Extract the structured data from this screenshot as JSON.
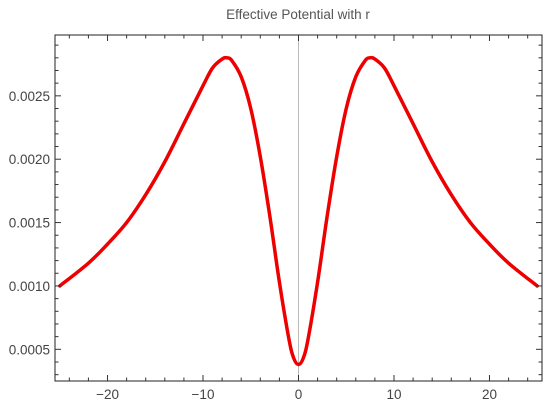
{
  "chart_data": {
    "type": "line",
    "title": "Effective Potential with r",
    "xlabel": "",
    "ylabel": "",
    "xlim": [
      -25.5,
      25.5
    ],
    "ylim": [
      0.00025,
      0.00298
    ],
    "x_ticks": [
      -20,
      -10,
      0,
      10,
      20
    ],
    "x_tick_labels": [
      "−20",
      "−10",
      "0",
      "10",
      "20"
    ],
    "y_ticks": [
      0.0005,
      0.001,
      0.0015,
      0.002,
      0.0025
    ],
    "y_tick_labels": [
      "0.0005",
      "0.0010",
      "0.0015",
      "0.0020",
      "0.0025"
    ],
    "grid": false,
    "zero_line_x": 0,
    "series": [
      {
        "color": "#ee0000",
        "x": [
          -25,
          -22,
          -20,
          -18,
          -16,
          -14,
          -12,
          -10,
          -9,
          -8,
          -7.5,
          -7,
          -6,
          -5,
          -4,
          -3,
          -2,
          -1,
          -0.5,
          0,
          0.5,
          1,
          2,
          3,
          4,
          5,
          6,
          7,
          7.5,
          8,
          9,
          10,
          12,
          14,
          16,
          18,
          20,
          22,
          25
        ],
        "y": [
          0.001,
          0.00118,
          0.00133,
          0.0015,
          0.00172,
          0.00198,
          0.00228,
          0.00258,
          0.00272,
          0.00279,
          0.0028,
          0.00278,
          0.00265,
          0.0024,
          0.00202,
          0.00155,
          0.00103,
          0.00058,
          0.00043,
          0.00038,
          0.00043,
          0.00058,
          0.00103,
          0.00155,
          0.00202,
          0.0024,
          0.00265,
          0.00278,
          0.0028,
          0.00279,
          0.00272,
          0.00258,
          0.00228,
          0.00198,
          0.00172,
          0.0015,
          0.00133,
          0.00118,
          0.001
        ]
      }
    ]
  }
}
